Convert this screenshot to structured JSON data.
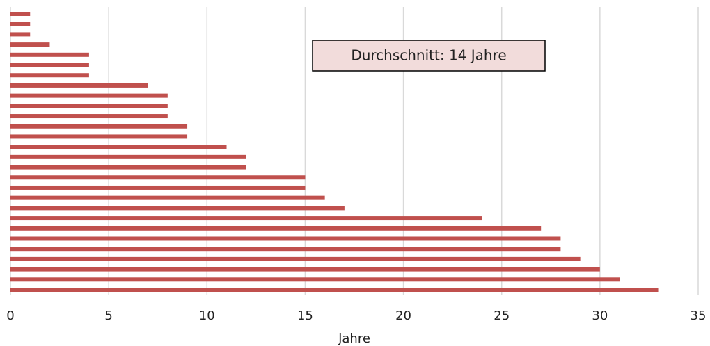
{
  "chart_data": {
    "type": "barh",
    "categories": [
      null,
      null,
      null,
      null,
      null,
      null,
      null,
      null,
      null,
      null,
      null,
      null,
      null,
      null,
      null,
      null,
      null,
      null,
      null,
      null,
      null,
      null,
      null,
      null,
      null,
      null,
      null,
      null
    ],
    "values": [
      1,
      1,
      1,
      2,
      4,
      4,
      4,
      7,
      8,
      8,
      8,
      9,
      9,
      11,
      12,
      12,
      15,
      15,
      16,
      17,
      24,
      27,
      28,
      28,
      29,
      30,
      31,
      33
    ],
    "color": "#c0504d",
    "xlabel": "Jahre",
    "annotation": "Durchschnitt: 14 Jahre",
    "xlim": [
      0,
      35
    ],
    "xticks": [
      0,
      5,
      10,
      15,
      20,
      25,
      30,
      35
    ],
    "grid": true
  }
}
